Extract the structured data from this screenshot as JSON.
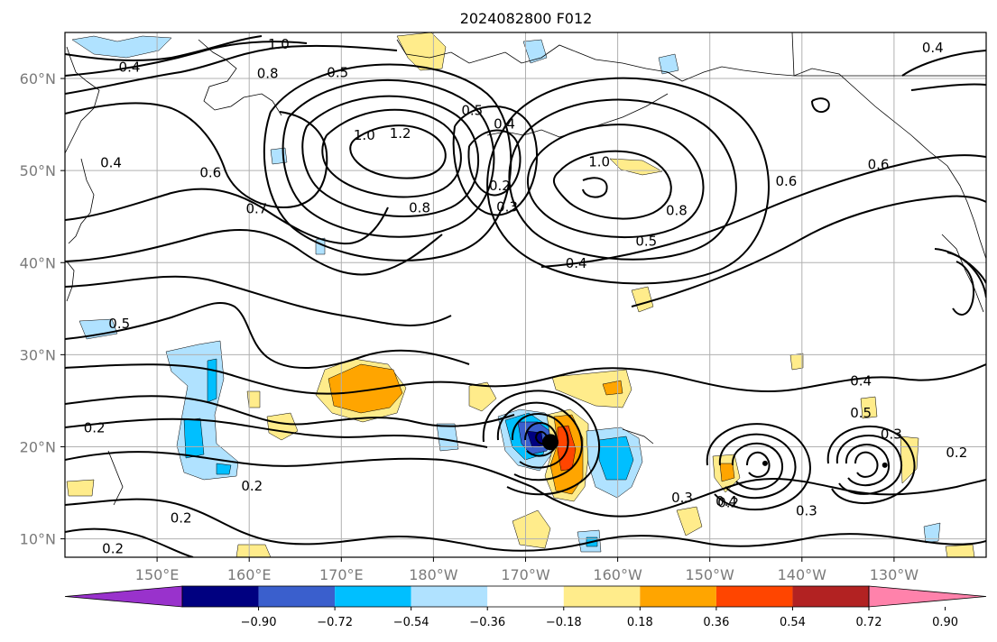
{
  "chart_data": {
    "type": "contour_map",
    "title": "2024082800 F012",
    "projection": "lat-lon",
    "x_range": [
      140,
      240
    ],
    "y_range": [
      8,
      65
    ],
    "x_ticks": [
      {
        "value": 150,
        "label": "150°E"
      },
      {
        "value": 160,
        "label": "160°E"
      },
      {
        "value": 170,
        "label": "170°E"
      },
      {
        "value": 180,
        "label": "180°W"
      },
      {
        "value": 190,
        "label": "170°W"
      },
      {
        "value": 200,
        "label": "160°W"
      },
      {
        "value": 210,
        "label": "150°W"
      },
      {
        "value": 220,
        "label": "140°W"
      },
      {
        "value": 230,
        "label": "130°W"
      }
    ],
    "y_ticks": [
      {
        "value": 10,
        "label": "10°N"
      },
      {
        "value": 20,
        "label": "20°N"
      },
      {
        "value": 30,
        "label": "30°N"
      },
      {
        "value": 40,
        "label": "40°N"
      },
      {
        "value": 50,
        "label": "50°N"
      },
      {
        "value": 60,
        "label": "60°N"
      }
    ],
    "grid": true,
    "colorbar": {
      "orientation": "horizontal",
      "position": "bottom",
      "extend": "both",
      "colors": [
        "#9932cc",
        "#000080",
        "#3a5fcd",
        "#00bfff",
        "#b0e2ff",
        "#ffffff",
        "#ffec8b",
        "#ffa500",
        "#ff4500",
        "#b22222",
        "#ff82ab"
      ],
      "tick_labels": [
        "−0.90",
        "−0.72",
        "−0.54",
        "−0.36",
        "−0.18",
        "0.18",
        "0.36",
        "0.54",
        "0.72",
        "0.90"
      ],
      "tick_values": [
        -0.9,
        -0.72,
        -0.54,
        -0.36,
        -0.18,
        0.18,
        0.36,
        0.54,
        0.72,
        0.9
      ]
    },
    "contour_labels": [
      {
        "text": "1.0",
        "lon": 163.2,
        "lat": 63.7
      },
      {
        "text": "0.4",
        "lon": 147.0,
        "lat": 61.2
      },
      {
        "text": "0.8",
        "lon": 162.0,
        "lat": 60.5
      },
      {
        "text": "0.5",
        "lon": 169.6,
        "lat": 60.6
      },
      {
        "text": "0.4",
        "lon": 187.7,
        "lat": 55.0
      },
      {
        "text": "0.5",
        "lon": 184.2,
        "lat": 56.5
      },
      {
        "text": "1.0",
        "lon": 172.5,
        "lat": 53.8
      },
      {
        "text": "1.2",
        "lon": 176.4,
        "lat": 54.0
      },
      {
        "text": "0.4",
        "lon": 145.0,
        "lat": 50.8
      },
      {
        "text": "0.6",
        "lon": 155.8,
        "lat": 49.7
      },
      {
        "text": "0.7",
        "lon": 160.8,
        "lat": 45.8
      },
      {
        "text": "0.8",
        "lon": 178.5,
        "lat": 45.9
      },
      {
        "text": "0.2",
        "lon": 187.2,
        "lat": 48.3
      },
      {
        "text": "0.3",
        "lon": 188.0,
        "lat": 46.0
      },
      {
        "text": "1.0",
        "lon": 198.0,
        "lat": 50.9
      },
      {
        "text": "0.8",
        "lon": 206.4,
        "lat": 45.6
      },
      {
        "text": "0.6",
        "lon": 218.3,
        "lat": 48.8
      },
      {
        "text": "0.6",
        "lon": 228.3,
        "lat": 50.6
      },
      {
        "text": "0.4",
        "lon": 234.2,
        "lat": 63.3
      },
      {
        "text": "0.5",
        "lon": 203.1,
        "lat": 42.3
      },
      {
        "text": "0.4",
        "lon": 195.5,
        "lat": 39.9
      },
      {
        "text": "0.5",
        "lon": 145.9,
        "lat": 33.3
      },
      {
        "text": "0.4",
        "lon": 226.4,
        "lat": 27.1
      },
      {
        "text": "0.5",
        "lon": 226.4,
        "lat": 23.6
      },
      {
        "text": "0.3",
        "lon": 229.7,
        "lat": 21.3
      },
      {
        "text": "0.2",
        "lon": 143.2,
        "lat": 22.0
      },
      {
        "text": "0.2",
        "lon": 160.3,
        "lat": 15.7
      },
      {
        "text": "0.2",
        "lon": 152.6,
        "lat": 12.2
      },
      {
        "text": "0.2",
        "lon": 145.2,
        "lat": 8.9
      },
      {
        "text": "0.2",
        "lon": 236.8,
        "lat": 19.3
      },
      {
        "text": "0.2",
        "lon": 212.0,
        "lat": 13.9
      },
      {
        "text": "0.3",
        "lon": 207.0,
        "lat": 14.4
      },
      {
        "text": "0.4",
        "lon": 211.8,
        "lat": 14.0
      },
      {
        "text": "0.3",
        "lon": 220.5,
        "lat": 13.0
      }
    ],
    "shaded_regions": [
      {
        "color": "#ffa500",
        "label": "0.36–0.54",
        "center_lon": 173.3,
        "center_lat": 26.8
      },
      {
        "color": "#b0e2ff",
        "label": "-0.36–-0.18",
        "center_lon": 150.8,
        "center_lat": 23.0
      },
      {
        "color": "#00bfff",
        "label": "-0.54–-0.36",
        "center_lon": 151.0,
        "center_lat": 21.0
      },
      {
        "color": "#3a5fcd",
        "label": "-0.72–-0.54",
        "center_lon": 188.5,
        "center_lat": 20.2
      },
      {
        "color": "#ff4500",
        "label": "0.54–0.72",
        "center_lon": 195.7,
        "center_lat": 19.5
      },
      {
        "color": "#00bfff",
        "label": "-0.54–-0.36",
        "center_lon": 201.0,
        "center_lat": 17.8
      }
    ],
    "lows": [
      {
        "lon": 192.7,
        "lat": 20.5
      },
      {
        "lon": 216.0,
        "lat": 18.2
      },
      {
        "lon": 229.0,
        "lat": 18.0
      }
    ]
  }
}
